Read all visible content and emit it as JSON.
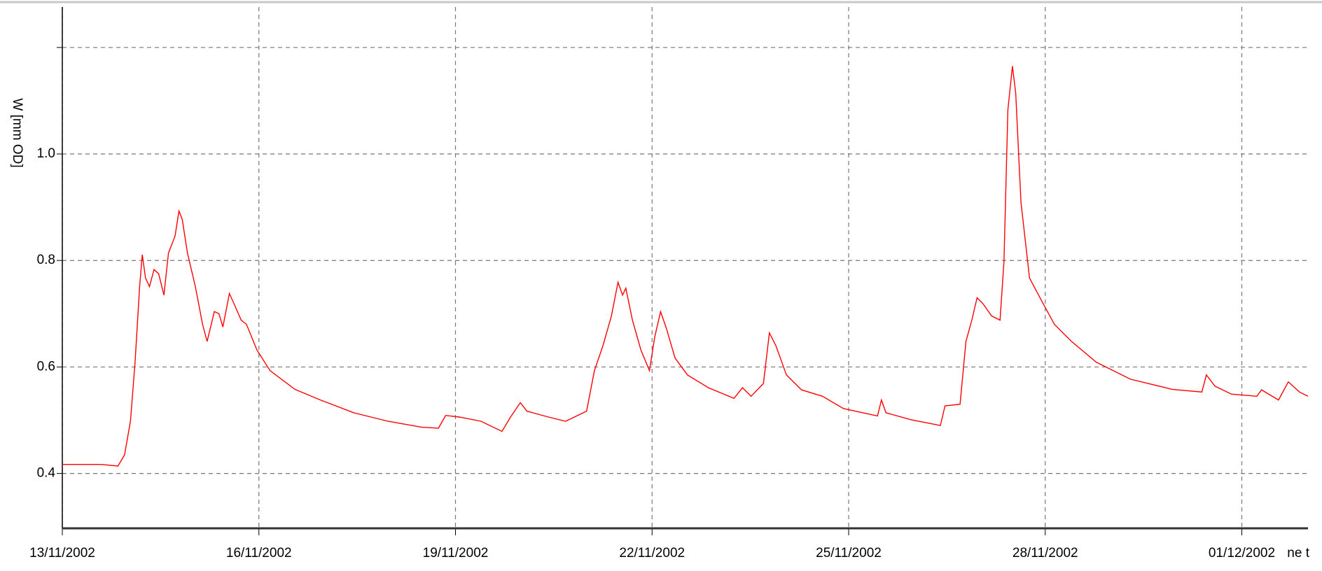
{
  "chart_data": {
    "type": "line",
    "ylabel": "W [mm OD]",
    "xlabel": "ne t",
    "series": [
      {
        "name": null,
        "color": "#ff0000",
        "x": [
          0,
          0.59,
          0.85,
          0.95,
          1.04,
          1.11,
          1.18,
          1.22,
          1.27,
          1.33,
          1.4,
          1.47,
          1.55,
          1.62,
          1.72,
          1.78,
          1.83,
          1.91,
          2.03,
          2.14,
          2.21,
          2.32,
          2.39,
          2.45,
          2.55,
          2.63,
          2.73,
          2.81,
          2.97,
          3.17,
          3.55,
          3.94,
          4.45,
          4.97,
          5.48,
          5.74,
          5.85,
          6.06,
          6.39,
          6.71,
          6.84,
          6.99,
          7.09,
          7.42,
          7.68,
          8.0,
          8.12,
          8.25,
          8.38,
          8.48,
          8.55,
          8.6,
          8.7,
          8.83,
          8.96,
          9.04,
          9.13,
          9.22,
          9.35,
          9.54,
          9.86,
          10.25,
          10.38,
          10.51,
          10.7,
          10.79,
          10.89,
          11.05,
          11.28,
          11.6,
          11.92,
          12.44,
          12.5,
          12.57,
          12.95,
          13.4,
          13.47,
          13.7,
          13.79,
          13.88,
          13.96,
          14.05,
          14.18,
          14.31,
          14.37,
          14.43,
          14.5,
          14.55,
          14.63,
          14.76,
          14.95,
          15.14,
          15.4,
          15.78,
          16.3,
          16.94,
          17.39,
          17.46,
          17.59,
          17.84,
          18.23,
          18.3,
          18.56,
          18.71,
          18.88,
          19.01
        ],
        "values": [
          0.417,
          0.417,
          0.414,
          0.435,
          0.498,
          0.609,
          0.751,
          0.811,
          0.767,
          0.751,
          0.783,
          0.775,
          0.735,
          0.814,
          0.846,
          0.893,
          0.877,
          0.814,
          0.751,
          0.68,
          0.648,
          0.704,
          0.7,
          0.675,
          0.738,
          0.716,
          0.688,
          0.68,
          0.632,
          0.593,
          0.558,
          0.538,
          0.514,
          0.498,
          0.487,
          0.485,
          0.509,
          0.506,
          0.498,
          0.479,
          0.506,
          0.533,
          0.517,
          0.506,
          0.498,
          0.517,
          0.593,
          0.64,
          0.696,
          0.759,
          0.735,
          0.748,
          0.688,
          0.632,
          0.593,
          0.656,
          0.704,
          0.672,
          0.617,
          0.585,
          0.561,
          0.541,
          0.561,
          0.545,
          0.569,
          0.664,
          0.64,
          0.585,
          0.557,
          0.545,
          0.522,
          0.508,
          0.538,
          0.514,
          0.501,
          0.49,
          0.527,
          0.53,
          0.648,
          0.688,
          0.73,
          0.719,
          0.696,
          0.688,
          0.798,
          1.083,
          1.165,
          1.114,
          0.909,
          0.767,
          0.723,
          0.68,
          0.648,
          0.609,
          0.577,
          0.558,
          0.553,
          0.585,
          0.564,
          0.549,
          0.545,
          0.557,
          0.538,
          0.572,
          0.553,
          0.545
        ]
      }
    ],
    "xlim": [
      0,
      19.01
    ],
    "xticks": [
      {
        "value": 0,
        "label": "13/11/2002"
      },
      {
        "value": 3,
        "label": "16/11/2002"
      },
      {
        "value": 6,
        "label": "19/11/2002"
      },
      {
        "value": 9,
        "label": "22/11/2002"
      },
      {
        "value": 12,
        "label": "25/11/2002"
      },
      {
        "value": 15,
        "label": "28/11/2002"
      },
      {
        "value": 18,
        "label": "01/12/2002"
      }
    ],
    "ylim": [
      0.297,
      1.276
    ],
    "yticks": [
      0.4,
      0.6,
      0.8,
      {
        "value": 1.0,
        "label": "1.0"
      },
      {
        "value": 1.2,
        "label": null
      }
    ],
    "grid": true
  }
}
